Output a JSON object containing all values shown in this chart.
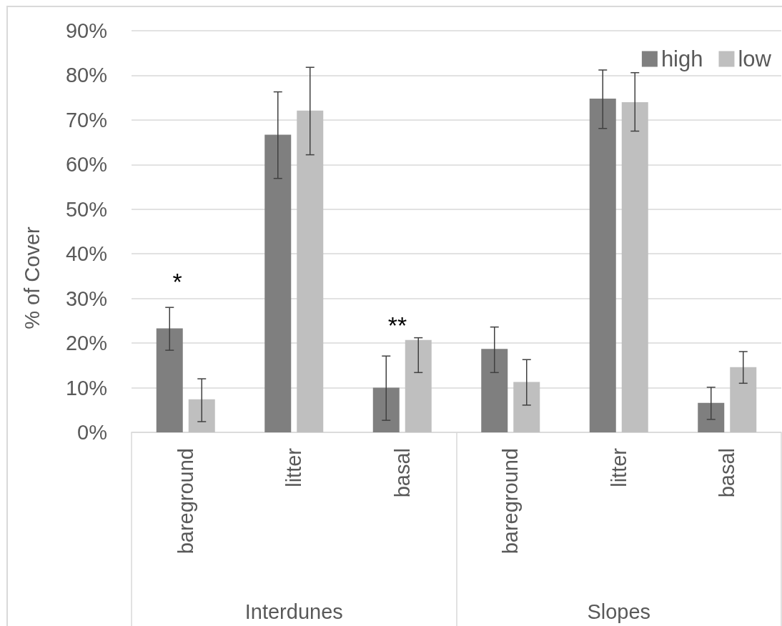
{
  "chart_data": {
    "type": "bar",
    "categories": [
      "bareground",
      "litter",
      "basal",
      "bareground",
      "litter",
      "basal"
    ],
    "series": [
      {
        "name": "high",
        "color": "#7f7f7f",
        "values": [
          23.3,
          66.7,
          10.0,
          18.7,
          74.8,
          6.6
        ],
        "errors": [
          [
            18.4,
            28.0
          ],
          [
            56.9,
            76.3
          ],
          [
            2.7,
            17.1
          ],
          [
            13.4,
            23.6
          ],
          [
            68.1,
            81.2
          ],
          [
            2.9,
            10.1
          ]
        ]
      },
      {
        "name": "low",
        "color": "#bfbfbf",
        "values": [
          7.4,
          72.1,
          20.7,
          11.3,
          74.0,
          14.6
        ],
        "errors": [
          [
            2.4,
            12.0
          ],
          [
            62.2,
            81.8
          ],
          [
            13.4,
            21.2
          ],
          [
            6.1,
            16.3
          ],
          [
            67.5,
            80.6
          ],
          [
            11.0,
            18.1
          ]
        ]
      }
    ],
    "ylabel": "% of Cover",
    "ylim": [
      0,
      90
    ],
    "yticks": [
      {
        "value": 0,
        "label": "0%"
      },
      {
        "value": 10,
        "label": "10%"
      },
      {
        "value": 20,
        "label": "20%"
      },
      {
        "value": 30,
        "label": "30%"
      },
      {
        "value": 40,
        "label": "40%"
      },
      {
        "value": 50,
        "label": "50%"
      },
      {
        "value": 60,
        "label": "60%"
      },
      {
        "value": 70,
        "label": "70%"
      },
      {
        "value": 80,
        "label": "80%"
      },
      {
        "value": 90,
        "label": "90%"
      }
    ],
    "annotations": [
      "Interdunes",
      "Slopes",
      "*",
      "**"
    ],
    "grid": "y",
    "legend": "top right"
  }
}
